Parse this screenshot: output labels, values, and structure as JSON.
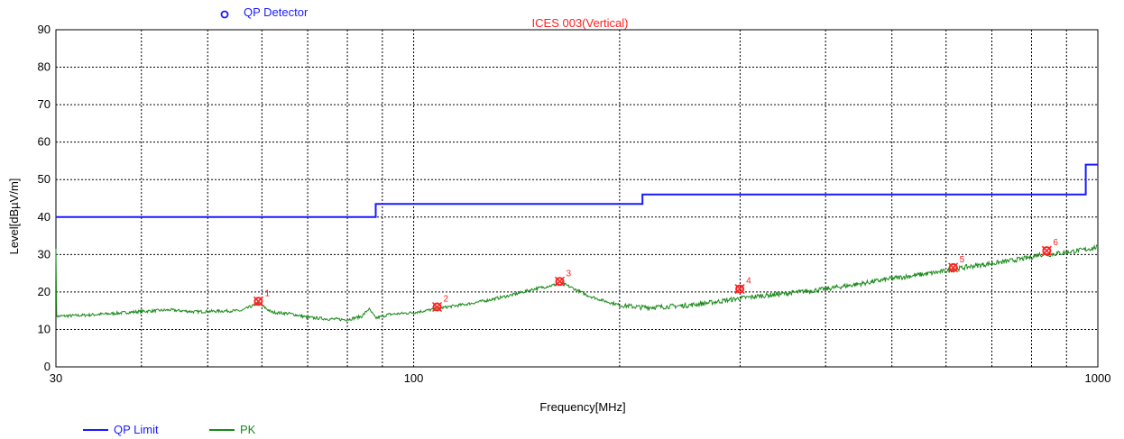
{
  "chart_data": {
    "type": "line",
    "title": "ICES 003(Vertical)",
    "detector_label": "QP Detector",
    "xlabel": "Frequency[MHz]",
    "ylabel": "Level[dBµV/m]",
    "x_scale": "log",
    "xlim": [
      30,
      1000
    ],
    "ylim": [
      0,
      90
    ],
    "x_ticks": [
      "30",
      "100",
      "1000"
    ],
    "y_ticks": [
      "0",
      "10",
      "20",
      "30",
      "40",
      "50",
      "60",
      "70",
      "80",
      "90"
    ],
    "grid": true,
    "legend_position": "bottom-left",
    "colors": {
      "limit": "#1a1aff",
      "pk": "#1a8a1a",
      "marker": "#ff2020",
      "title": "#ff2020",
      "detector": "#1a1aff"
    },
    "series": [
      {
        "name": "QP Limit",
        "step": true,
        "x": [
          30,
          88,
          88,
          216,
          216,
          960,
          960,
          1000
        ],
        "y": [
          40,
          40,
          43.5,
          43.5,
          46,
          46,
          54,
          54
        ]
      },
      {
        "name": "PK",
        "x": [
          30,
          33,
          36,
          40,
          44,
          48,
          52,
          56,
          59.3,
          62,
          66,
          70,
          75,
          80,
          84,
          86,
          88,
          92,
          100,
          108,
          112,
          120,
          130,
          140,
          150,
          160,
          163.5,
          170,
          180,
          190,
          200,
          215,
          230,
          250,
          270,
          290,
          300,
          320,
          350,
          400,
          450,
          500,
          550,
          600,
          615,
          650,
          700,
          750,
          800,
          820,
          850,
          900,
          950,
          1000
        ],
        "y": [
          13.5,
          13.8,
          14.2,
          14.8,
          15.2,
          14.7,
          14.9,
          15.0,
          17.0,
          14.6,
          14.2,
          13.2,
          12.8,
          12.6,
          13.5,
          15.5,
          13.0,
          14.0,
          14.5,
          15.5,
          16.0,
          16.8,
          18.0,
          19.3,
          20.8,
          21.8,
          22.6,
          21.2,
          19.0,
          17.6,
          16.5,
          15.9,
          16.0,
          16.4,
          17.1,
          17.9,
          18.3,
          18.9,
          19.6,
          20.8,
          22.2,
          23.6,
          24.6,
          25.6,
          26.0,
          26.8,
          27.6,
          28.4,
          29.3,
          30.0,
          30.0,
          30.6,
          31.2,
          32.0
        ]
      }
    ],
    "markers": [
      {
        "label": "1",
        "x": 59.3,
        "y": 17.5
      },
      {
        "label": "2",
        "x": 108.2,
        "y": 16.0
      },
      {
        "label": "3",
        "x": 163.5,
        "y": 22.8
      },
      {
        "label": "4",
        "x": 299.7,
        "y": 20.8
      },
      {
        "label": "5",
        "x": 614.6,
        "y": 26.5
      },
      {
        "label": "6",
        "x": 842.0,
        "y": 31.0
      }
    ]
  }
}
